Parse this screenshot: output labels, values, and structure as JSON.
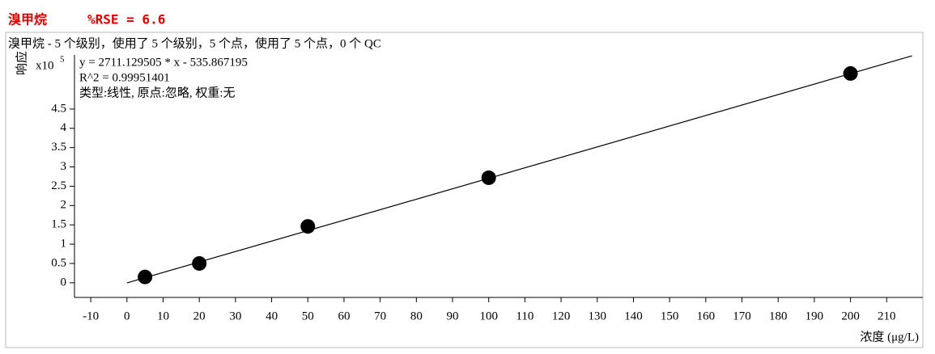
{
  "chart_data": {
    "type": "scatter",
    "title": "溴甲烷",
    "rse_label": "%RSE = 6.6",
    "subtitle": "溴甲烷 - 5 个级别，使用了 5 个级别，5 个点，使用了 5 个点，0 个 QC",
    "ylabel": "响应",
    "y_scale_label": "x10",
    "y_scale_exponent": "5",
    "xlabel": "浓度 (μg/L)",
    "annotations": [
      "y = 2711.129505 * x  - 535.867195",
      "R^2 = 0.99951401",
      "类型:线性, 原点:忽略, 权重:无"
    ],
    "x": [
      5,
      20,
      50,
      100,
      200
    ],
    "values": [
      0.15,
      0.5,
      1.46,
      2.72,
      5.42
    ],
    "color": "#000000",
    "fit": {
      "x": [
        0,
        217
      ],
      "values": [
        -0.005,
        5.877
      ]
    },
    "xlim": [
      -14.5,
      220
    ],
    "ylim": [
      -0.38,
      5.9
    ],
    "xticks": [
      -10,
      0,
      10,
      20,
      30,
      40,
      50,
      60,
      70,
      80,
      90,
      100,
      110,
      120,
      130,
      140,
      150,
      160,
      170,
      180,
      190,
      200,
      210
    ],
    "yticks": [
      0,
      0.5,
      1,
      1.5,
      2,
      2.5,
      3,
      3.5,
      4,
      4.5
    ],
    "grid": false
  }
}
